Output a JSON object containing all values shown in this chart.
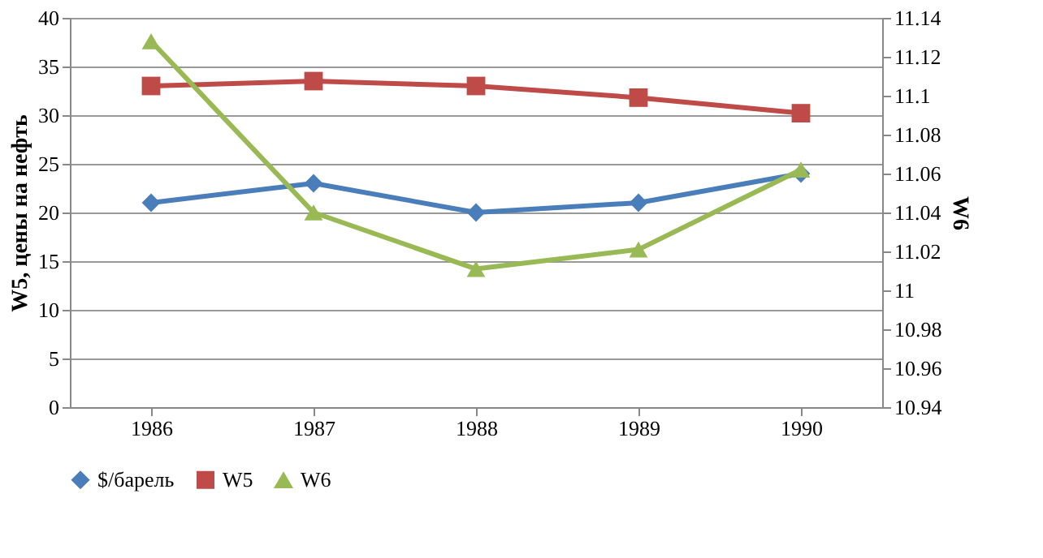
{
  "chart_data": {
    "type": "line",
    "ylabel": "W5, цены на нефть",
    "y2label": "W6",
    "categories": [
      "1986",
      "1987",
      "1988",
      "1989",
      "1990"
    ],
    "series": [
      {
        "name": "$/барель",
        "color": "#4a7ebb",
        "marker": "diamond",
        "values": [
          21,
          23,
          20,
          21,
          24
        ]
      },
      {
        "name": "W5",
        "color": "#be4b48",
        "marker": "square",
        "values": [
          33,
          33.5,
          33,
          31.8,
          30.2
        ]
      },
      {
        "name": "W6",
        "color": "#98b954",
        "marker": "triangle",
        "axis": "y2",
        "values": [
          11.128,
          11.04,
          11.011,
          11.021,
          11.062
        ]
      }
    ],
    "ylim": [
      0,
      40
    ],
    "yticks": [
      0,
      5,
      10,
      15,
      20,
      25,
      30,
      35,
      40
    ],
    "y2lim": [
      10.94,
      11.14
    ],
    "y2ticks": [
      10.94,
      10.96,
      10.98,
      11,
      11.02,
      11.04,
      11.06,
      11.08,
      11.1,
      11.12,
      11.14
    ],
    "grid": "y",
    "legend": "bottom",
    "line_style": "solid"
  }
}
